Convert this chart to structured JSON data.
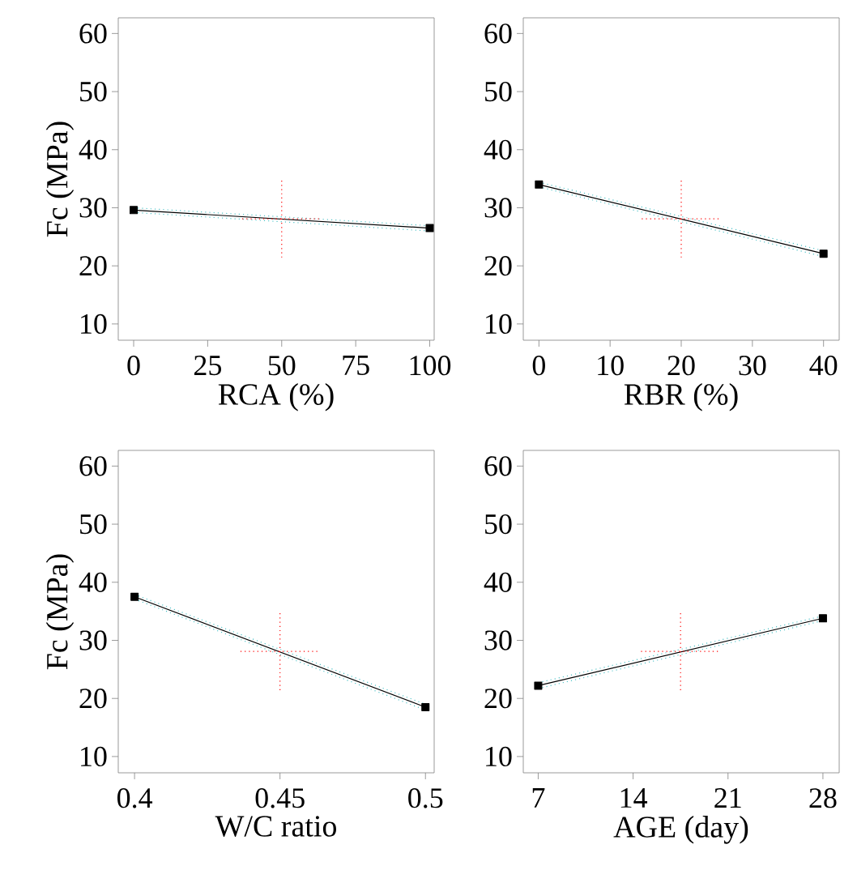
{
  "chart_data": [
    {
      "type": "line",
      "xlabel": "RCA (%)",
      "ylabel": "Fc (MPa)",
      "xlim": [
        -5.2,
        101.5
      ],
      "xticks": [
        0,
        25,
        50,
        75,
        100
      ],
      "ylim": [
        7.2,
        62.7
      ],
      "yticks": [
        10,
        20,
        30,
        40,
        50,
        60
      ],
      "marker": "square",
      "grid": false,
      "series": [
        {
          "color": "#50c3c8",
          "marker": "none",
          "line_style": "dotted",
          "x": [
            0,
            100
          ],
          "values": [
            29.2,
            26.0
          ]
        },
        {
          "color": "#50c3c8",
          "marker": "none",
          "line_style": "dotted",
          "x": [
            0,
            100
          ],
          "values": [
            30.0,
            26.9
          ]
        },
        {
          "color": "#000000",
          "x": [
            0,
            100
          ],
          "values": [
            29.6,
            26.5
          ]
        }
      ],
      "ref_lines": [
        {
          "axis": "x",
          "value": 50,
          "color": "#ff0000",
          "line_style": "dotted"
        },
        {
          "axis": "y",
          "value": 28.1,
          "color": "#ff0000",
          "line_style": "dotted"
        }
      ]
    },
    {
      "type": "line",
      "xlabel": "RBR (%)",
      "xlim": [
        -2.2,
        42.2
      ],
      "xticks": [
        0,
        10,
        20,
        30,
        40
      ],
      "ylim": [
        7.2,
        62.7
      ],
      "yticks": [
        10,
        20,
        30,
        40,
        50,
        60
      ],
      "marker": "square",
      "grid": false,
      "series": [
        {
          "color": "#50c3c8",
          "marker": "none",
          "line_style": "dotted",
          "x": [
            0,
            40
          ],
          "values": [
            33.6,
            21.6
          ]
        },
        {
          "color": "#50c3c8",
          "marker": "none",
          "line_style": "dotted",
          "x": [
            0,
            40
          ],
          "values": [
            34.4,
            22.6
          ]
        },
        {
          "color": "#000000",
          "x": [
            0,
            40
          ],
          "values": [
            34.0,
            22.1
          ]
        }
      ],
      "ref_lines": [
        {
          "axis": "x",
          "value": 20,
          "color": "#ff0000",
          "line_style": "dotted"
        },
        {
          "axis": "y",
          "value": 28.1,
          "color": "#ff0000",
          "line_style": "dotted"
        }
      ]
    },
    {
      "type": "line",
      "xlabel": "W/C ratio",
      "ylabel": "Fc (MPa)",
      "xlim": [
        0.3944,
        0.503
      ],
      "xticks": [
        0.4,
        0.45,
        0.5
      ],
      "ylim": [
        7.2,
        62.7
      ],
      "yticks": [
        10,
        20,
        30,
        40,
        50,
        60
      ],
      "marker": "square",
      "grid": false,
      "series": [
        {
          "color": "#50c3c8",
          "marker": "none",
          "line_style": "dotted",
          "x": [
            0.4,
            0.5
          ],
          "values": [
            37.1,
            18.0
          ]
        },
        {
          "color": "#50c3c8",
          "marker": "none",
          "line_style": "dotted",
          "x": [
            0.4,
            0.5
          ],
          "values": [
            37.9,
            19.0
          ]
        },
        {
          "color": "#000000",
          "x": [
            0.4,
            0.5
          ],
          "values": [
            37.5,
            18.5
          ]
        }
      ],
      "ref_lines": [
        {
          "axis": "x",
          "value": 0.45,
          "color": "#ff0000",
          "line_style": "dotted"
        },
        {
          "axis": "y",
          "value": 28.1,
          "color": "#ff0000",
          "line_style": "dotted"
        }
      ]
    },
    {
      "type": "line",
      "xlabel": "AGE (day)",
      "xlim": [
        5.9,
        29.2
      ],
      "xticks": [
        7,
        14,
        21,
        28
      ],
      "ylim": [
        7.2,
        62.7
      ],
      "yticks": [
        10,
        20,
        30,
        40,
        50,
        60
      ],
      "marker": "square",
      "grid": false,
      "series": [
        {
          "color": "#50c3c8",
          "marker": "none",
          "line_style": "dotted",
          "x": [
            7,
            28
          ],
          "values": [
            21.7,
            33.4
          ]
        },
        {
          "color": "#50c3c8",
          "marker": "none",
          "line_style": "dotted",
          "x": [
            7,
            28
          ],
          "values": [
            22.7,
            34.2
          ]
        },
        {
          "color": "#000000",
          "x": [
            7,
            28
          ],
          "values": [
            22.2,
            33.8
          ]
        }
      ],
      "ref_lines": [
        {
          "axis": "x",
          "value": 17.5,
          "color": "#ff0000",
          "line_style": "dotted"
        },
        {
          "axis": "y",
          "value": 28.1,
          "color": "#ff0000",
          "line_style": "dotted"
        }
      ]
    }
  ]
}
